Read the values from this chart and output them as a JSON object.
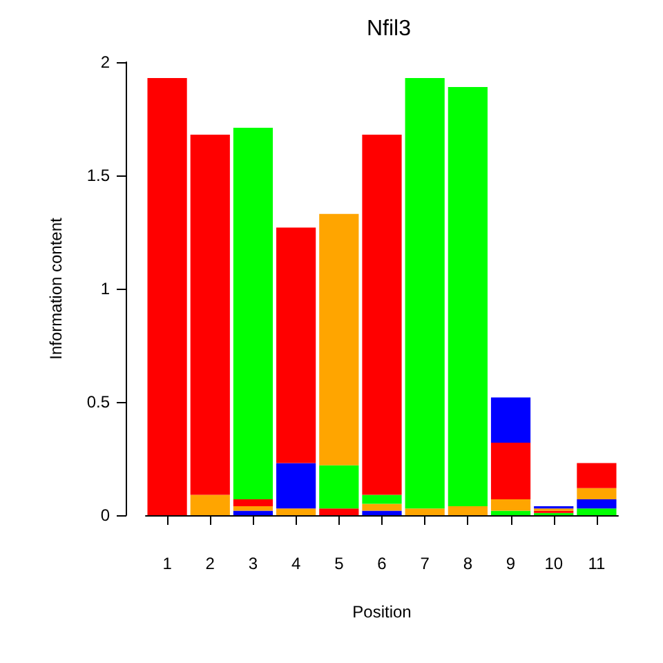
{
  "chart_data": {
    "type": "bar",
    "title": "Nfil3",
    "xlabel": "Position",
    "ylabel": "Information content",
    "categories": [
      "1",
      "2",
      "3",
      "4",
      "5",
      "6",
      "7",
      "8",
      "9",
      "10",
      "11"
    ],
    "stacked": true,
    "series": [
      {
        "values": [
          1.93,
          0.09,
          0.02,
          0.03,
          0.03,
          0.02,
          0.03,
          0.04,
          0.02,
          0.01,
          0.03
        ],
        "colors": [
          "#ff0000",
          "#ffa500",
          "#0000ff",
          "#ffa500",
          "#ff0000",
          "#0000ff",
          "#ffa500",
          "#ffa500",
          "#00ff00",
          "#00ff00",
          "#00ff00"
        ]
      },
      {
        "values": [
          null,
          1.59,
          0.02,
          0.2,
          0.19,
          0.03,
          1.9,
          1.85,
          0.05,
          0.01,
          0.04
        ],
        "colors": [
          null,
          "#ff0000",
          "#ffa500",
          "#0000ff",
          "#00ff00",
          "#ffa500",
          "#00ff00",
          "#00ff00",
          "#ffa500",
          "#ff0000",
          "#0000ff"
        ]
      },
      {
        "values": [
          null,
          null,
          0.03,
          1.04,
          1.11,
          0.04,
          null,
          null,
          0.25,
          0.01,
          0.05
        ],
        "colors": [
          null,
          null,
          "#ff0000",
          "#ff0000",
          "#ffa500",
          "#00ff00",
          null,
          null,
          "#ff0000",
          "#ffa500",
          "#ffa500"
        ]
      },
      {
        "values": [
          null,
          null,
          1.64,
          null,
          null,
          1.59,
          null,
          null,
          0.2,
          0.01,
          0.11
        ],
        "colors": [
          null,
          null,
          "#00ff00",
          null,
          null,
          "#ff0000",
          null,
          null,
          "#0000ff",
          "#0000ff",
          "#ff0000"
        ]
      }
    ],
    "ylim": [
      0,
      2
    ],
    "yticks": [
      0,
      0.5,
      1,
      1.5,
      2
    ]
  }
}
